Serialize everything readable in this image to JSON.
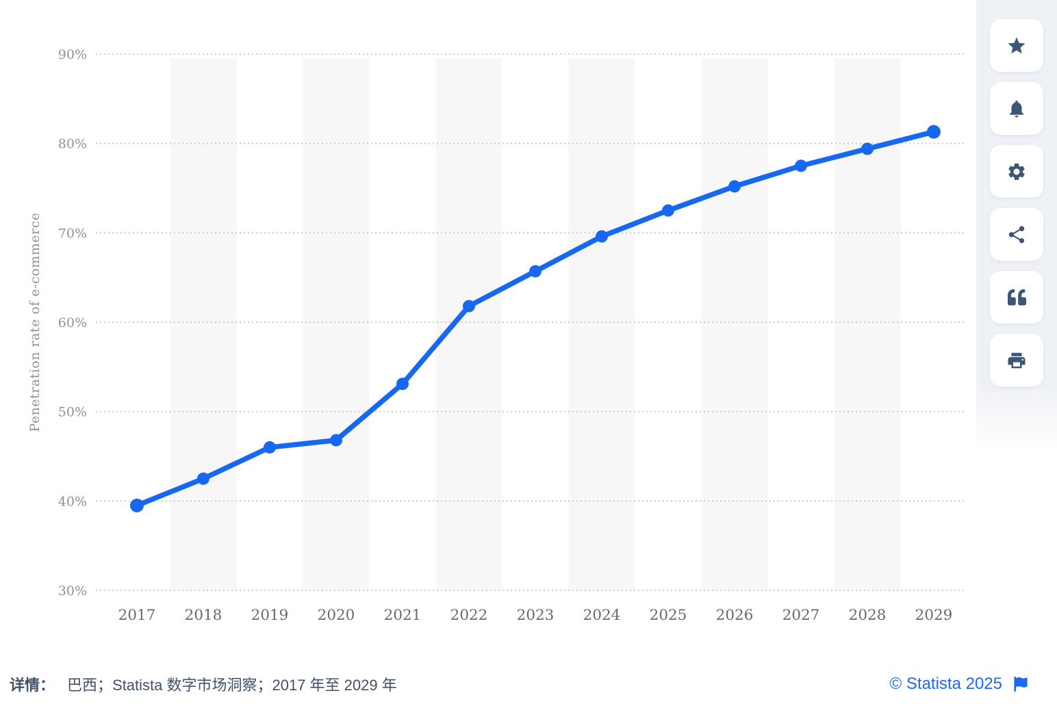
{
  "chart_data": {
    "type": "line",
    "title": "",
    "x": [
      2017,
      2018,
      2019,
      2020,
      2021,
      2022,
      2023,
      2024,
      2025,
      2026,
      2027,
      2028,
      2029
    ],
    "series": [
      {
        "name": "Penetration rate of e-commerce",
        "values": [
          39.5,
          42.5,
          46.0,
          46.8,
          53.1,
          61.8,
          65.7,
          69.6,
          72.5,
          75.2,
          77.5,
          79.4,
          81.3
        ]
      }
    ],
    "xlabel": "",
    "ylabel": "Penetration rate of e-commerce",
    "ylim": [
      30,
      90
    ],
    "y_ticks": [
      {
        "value": 90,
        "label": "90%"
      },
      {
        "value": 80,
        "label": "80%"
      },
      {
        "value": 70,
        "label": "70%"
      },
      {
        "value": 60,
        "label": "60%"
      },
      {
        "value": 50,
        "label": "50%"
      },
      {
        "value": 40,
        "label": "40%"
      },
      {
        "value": 30,
        "label": "30%"
      }
    ],
    "grid": "horizontal-dotted",
    "legend": "none",
    "striped_years": [
      2018,
      2020,
      2022,
      2024,
      2026,
      2028
    ]
  },
  "colors": {
    "line": "#1668f0",
    "point": "#1668f0",
    "band": "#f7f7f8",
    "grid": "#c9c9c9",
    "y_tick_text": "#8d9299",
    "x_tick_text": "#666b70",
    "y_title_text": "#8d9299",
    "footer_text": "#41516b",
    "copyright_blue": "#1b6af2",
    "icon": "#3e5777",
    "strip_bg": "#eef1f6"
  },
  "toolbar": {
    "buttons": [
      {
        "name": "favorite",
        "icon": "star-icon"
      },
      {
        "name": "notifications",
        "icon": "bell-icon"
      },
      {
        "name": "settings",
        "icon": "gear-icon"
      },
      {
        "name": "share",
        "icon": "share-icon"
      },
      {
        "name": "cite",
        "icon": "quote-icon"
      },
      {
        "name": "print",
        "icon": "printer-icon"
      }
    ]
  },
  "footer": {
    "details_label": "详情：",
    "details_text": "巴西；Statista 数字市场洞察；2017 年至 2029 年",
    "copyright": "© Statista 2025",
    "flag_icon": "flag-icon"
  }
}
